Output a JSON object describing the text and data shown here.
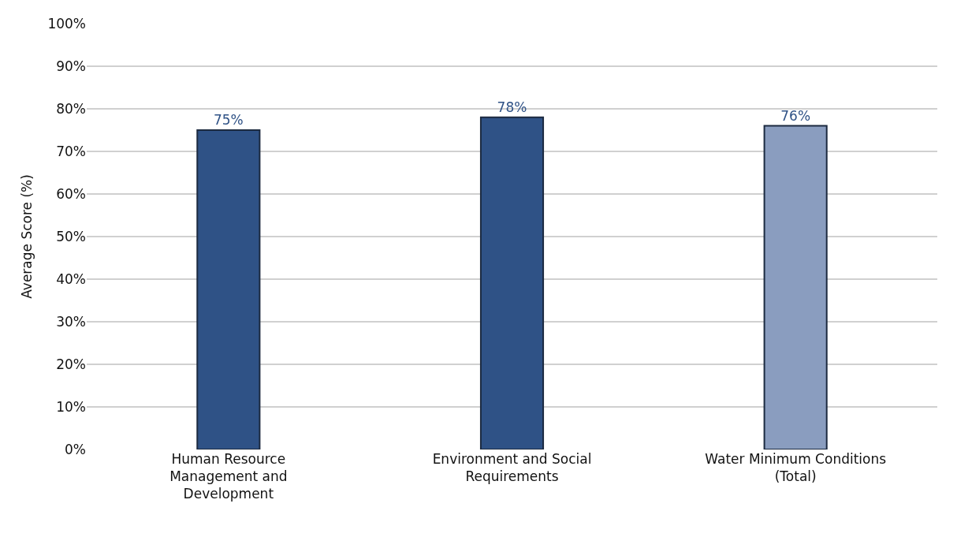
{
  "chart_data": {
    "type": "bar",
    "ylabel": "Average Score (%)",
    "categories": [
      "Human Resource Management and Development",
      "Environment and Social Requirements",
      "Water Minimum Conditions (Total)"
    ],
    "values": [
      75,
      78,
      76
    ],
    "colors": [
      "#2f5286",
      "#2f5286",
      "#8a9dbf"
    ],
    "value_labels": [
      "75%",
      "78%",
      "76%"
    ],
    "ylim": [
      0,
      100
    ],
    "yticks": [
      {
        "value": 0,
        "label": "0%"
      },
      {
        "value": 10,
        "label": "10%"
      },
      {
        "value": 20,
        "label": "20%"
      },
      {
        "value": 30,
        "label": "30%"
      },
      {
        "value": 40,
        "label": "40%"
      },
      {
        "value": 50,
        "label": "50%"
      },
      {
        "value": 60,
        "label": "60%"
      },
      {
        "value": 70,
        "label": "70%"
      },
      {
        "value": 80,
        "label": "80%"
      },
      {
        "value": 90,
        "label": "90%"
      },
      {
        "value": 100,
        "label": "100%"
      }
    ],
    "grid": "y",
    "legend": false
  }
}
